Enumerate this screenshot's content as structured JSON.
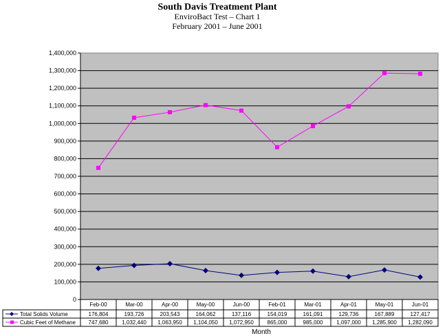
{
  "chart_data": {
    "type": "line",
    "title": "South Davis Treatment Plant",
    "subtitle_1": "EnviroBact Test – Chart 1",
    "subtitle_2": "February 2001 – June 2001",
    "xlabel": "Month",
    "ylabel": "",
    "ylim": [
      0,
      1400000
    ],
    "y_ticks": [
      "0",
      "100,000",
      "200,000",
      "300,000",
      "400,000",
      "500,000",
      "600,000",
      "700,000",
      "800,000",
      "900,000",
      "1,000,000",
      "1,100,000",
      "1,200,000",
      "1,300,000",
      "1,400,000"
    ],
    "categories": [
      "Feb-00",
      "Mar-00",
      "Apr-00",
      "May-00",
      "Jun-00",
      "Feb-01",
      "Mar-01",
      "Apr-01",
      "May-01",
      "Jun-01"
    ],
    "grid": true,
    "legend": "data table below plot",
    "plot_background": "#c0c0c0",
    "series": [
      {
        "name": "Total Solids Volume",
        "color": "#000080",
        "marker": "diamond",
        "values": [
          176804,
          193726,
          203543,
          164062,
          137116,
          154019,
          161091,
          129736,
          167889,
          127417
        ],
        "labels": [
          "176,804",
          "193,726",
          "203,543",
          "164,062",
          "137,116",
          "154,019",
          "161,091",
          "129,736",
          "167,889",
          "127,417"
        ]
      },
      {
        "name": "Cubic Feet of Methane",
        "color": "#ff00ff",
        "marker": "square",
        "values": [
          747680,
          1032440,
          1063950,
          1104050,
          1072950,
          865000,
          985000,
          1097000,
          1285900,
          1282090
        ],
        "labels": [
          "747,680",
          "1,032,440",
          "1,063,950",
          "1,104,050",
          "1,072,950",
          "865,000",
          "985,000",
          "1,097,000",
          "1,285,900",
          "1,282,090"
        ]
      }
    ]
  }
}
